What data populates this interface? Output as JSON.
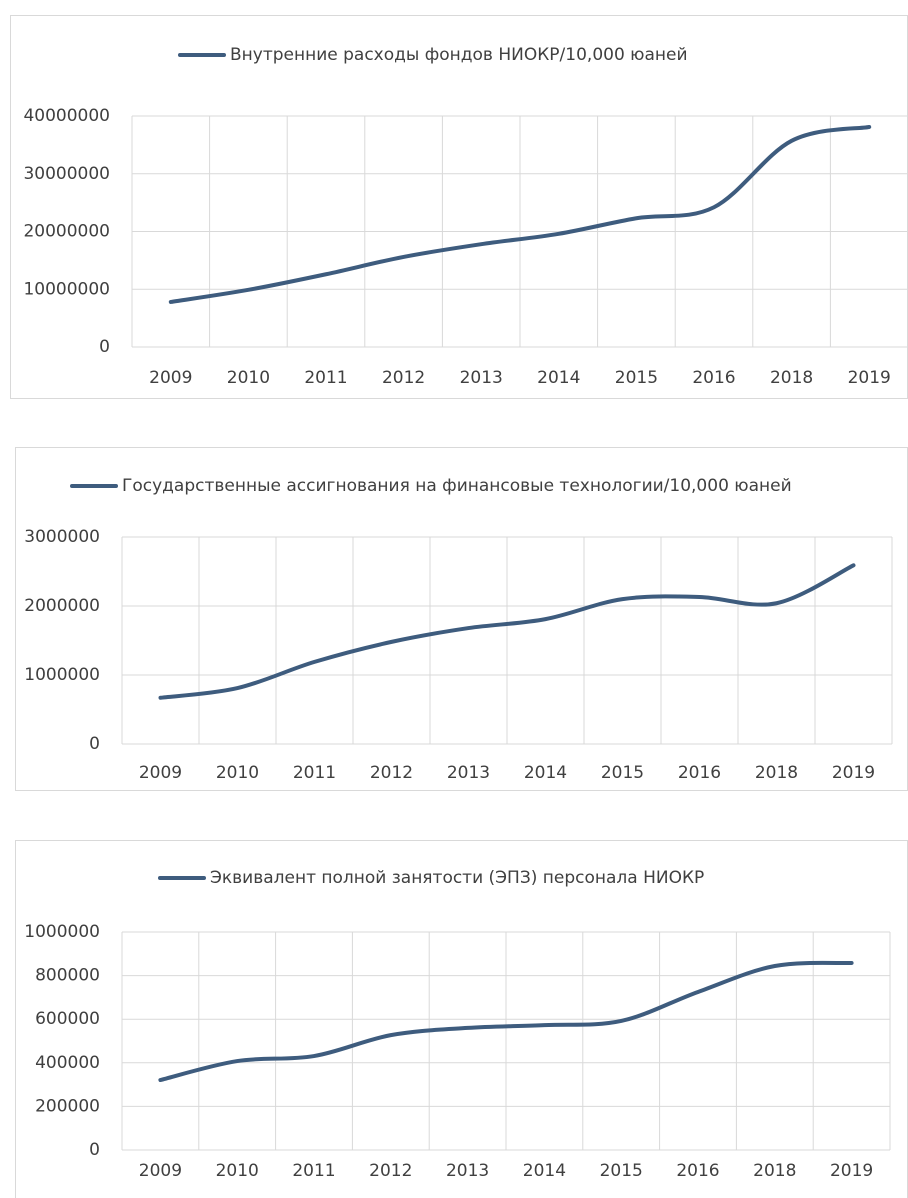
{
  "chart_data": [
    {
      "type": "line",
      "categories": [
        "2009",
        "2010",
        "2011",
        "2012",
        "2013",
        "2014",
        "2015",
        "2016",
        "2018",
        "2019"
      ],
      "series": [
        {
          "name": "Внутренние расходы фондов НИОКР/10,000 юаней",
          "color": "#3e5c7e",
          "values": [
            7800000,
            9900000,
            12600000,
            15600000,
            17800000,
            19600000,
            22300000,
            24200000,
            35700000,
            38100000
          ]
        }
      ],
      "ylim": [
        0,
        40000000
      ],
      "yticks": [
        0,
        10000000,
        20000000,
        30000000,
        40000000
      ],
      "grid": true,
      "smooth": true,
      "legend": "top"
    },
    {
      "type": "line",
      "categories": [
        "2009",
        "2010",
        "2011",
        "2012",
        "2013",
        "2014",
        "2015",
        "2016",
        "2018",
        "2019"
      ],
      "series": [
        {
          "name": "Государственные ассигнования на финансовые технологии/10,000 юаней",
          "color": "#3e5c7e",
          "values": [
            670000,
            810000,
            1190000,
            1480000,
            1680000,
            1810000,
            2100000,
            2130000,
            2040000,
            2590000
          ]
        }
      ],
      "ylim": [
        0,
        3000000
      ],
      "yticks": [
        0,
        1000000,
        2000000,
        3000000
      ],
      "grid": true,
      "smooth": true,
      "legend": "top"
    },
    {
      "type": "line",
      "categories": [
        "2009",
        "2010",
        "2011",
        "2012",
        "2013",
        "2014",
        "2015",
        "2016",
        "2018",
        "2019"
      ],
      "series": [
        {
          "name": "Эквивалент полной занятости (ЭПЗ) персонала НИОКР",
          "color": "#3e5c7e",
          "values": [
            321000,
            408000,
            431000,
            527000,
            560000,
            573000,
            592000,
            725000,
            844000,
            858000
          ]
        }
      ],
      "ylim": [
        0,
        1000000
      ],
      "yticks": [
        0,
        200000,
        400000,
        600000,
        800000,
        1000000
      ],
      "grid": true,
      "smooth": true,
      "legend": "top"
    }
  ]
}
